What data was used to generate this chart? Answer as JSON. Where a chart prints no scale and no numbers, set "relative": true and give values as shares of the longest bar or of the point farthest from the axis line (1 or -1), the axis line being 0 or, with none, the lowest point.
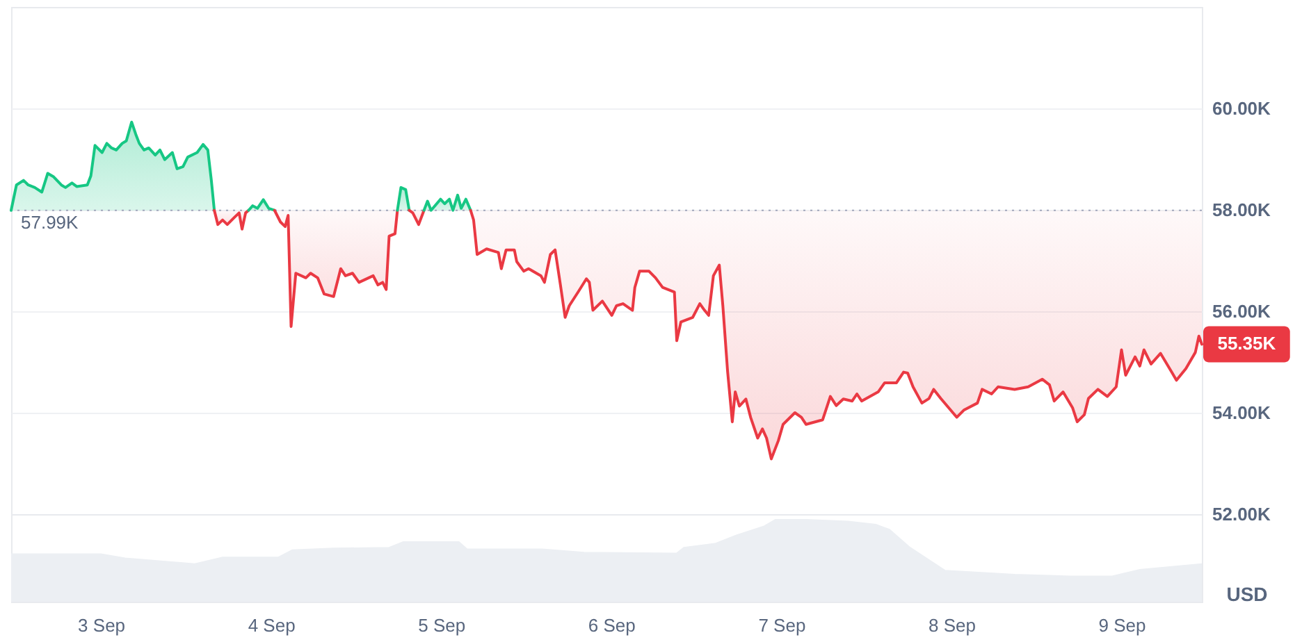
{
  "chart_data": [
    {
      "type": "line",
      "series": [
        {
          "color": "#16c784",
          "x": [
            "--09-02T11:20",
            "--09-02T12:05",
            "--09-02T13:05",
            "--09-02T13:45",
            "--09-02T14:40",
            "--09-02T15:40",
            "--09-02T16:30",
            "--09-02T17:20",
            "--09-02T18:25",
            "--09-02T19:00",
            "--09-02T19:55",
            "--09-02T20:35",
            "--09-02T22:05",
            "--09-02T22:35",
            "--09-02T23:10",
            "--09-03T00:10",
            "--09-03T00:50",
            "--09-03T01:30",
            "--09-03T02:10",
            "--09-03T03:00",
            "--09-03T03:35",
            "--09-03T04:20",
            "--09-03T04:55",
            "--09-03T05:25",
            "--09-03T06:05",
            "--09-03T06:45",
            "--09-03T07:40",
            "--09-03T08:20",
            "--09-03T09:00",
            "--09-03T10:05",
            "--09-03T10:45",
            "--09-03T11:35",
            "--09-03T12:15",
            "--09-03T13:35",
            "--09-03T14:25",
            "--09-03T15:05",
            "--09-03T15:35",
            "--09-03T16:00"
          ],
          "values": [
            57990,
            58490,
            58580,
            58490,
            58440,
            58350,
            58720,
            58650,
            58490,
            58440,
            58530,
            58460,
            58490,
            58670,
            59270,
            59130,
            59310,
            59220,
            59180,
            59310,
            59360,
            59730,
            59490,
            59310,
            59180,
            59220,
            59080,
            59180,
            58990,
            59130,
            58810,
            58850,
            59040,
            59130,
            59290,
            59180,
            58580,
            57990
          ],
          "lower": [
            57990,
            57990,
            57990,
            57990,
            57990,
            57990,
            57990,
            57990,
            57990,
            57990,
            57990,
            57990,
            57990,
            57990,
            57990,
            57990,
            57990,
            57990,
            57990,
            57990,
            57990,
            57990,
            57990,
            57990,
            57990,
            57990,
            57990,
            57990,
            57990,
            57990,
            57990,
            57990,
            57990,
            57990,
            57990,
            57990,
            57990,
            57990
          ],
          "upper": [
            57990,
            58490,
            58580,
            58490,
            58440,
            58350,
            58720,
            58650,
            58490,
            58440,
            58530,
            58460,
            58490,
            58670,
            59270,
            59130,
            59310,
            59220,
            59180,
            59310,
            59360,
            59730,
            59490,
            59310,
            59180,
            59220,
            59080,
            59180,
            58990,
            59130,
            58810,
            58850,
            59040,
            59130,
            59290,
            59180,
            58580,
            57990
          ]
        },
        {
          "color": "#ea3943",
          "x": [
            "--09-03T16:00",
            "--09-03T16:30",
            "--09-03T17:10",
            "--09-03T17:50",
            "--09-03T18:50",
            "--09-03T19:30",
            "--09-03T19:55",
            "--09-03T20:25",
            "--09-03T20:50"
          ],
          "values": [
            57990,
            57710,
            57800,
            57710,
            57850,
            57940,
            57620,
            57940,
            57990
          ],
          "lower": [
            57990,
            57710,
            57800,
            57710,
            57850,
            57940,
            57620,
            57940,
            57990
          ],
          "upper": [
            57990,
            57990,
            57990,
            57990,
            57990,
            57990,
            57990,
            57990,
            57990
          ]
        },
        {
          "color": "#16c784",
          "x": [
            "--09-03T20:50",
            "--09-03T21:25",
            "--09-03T22:05",
            "--09-03T22:55",
            "--09-03T23:40",
            "--09-04T00:30"
          ],
          "values": [
            57990,
            58080,
            58030,
            58200,
            58030,
            57990
          ],
          "lower": [
            57990,
            57990,
            57990,
            57990,
            57990,
            57990
          ],
          "upper": [
            57990,
            58080,
            58030,
            58200,
            58030,
            57990
          ]
        },
        {
          "color": "#ea3943",
          "x": [
            "--09-04T00:30",
            "--09-04T01:20",
            "--09-04T02:00",
            "--09-04T02:25",
            "--09-04T02:50",
            "--09-04T03:30",
            "--09-04T04:55",
            "--09-04T05:35",
            "--09-04T06:35",
            "--09-04T07:30",
            "--09-04T08:50",
            "--09-04T09:50",
            "--09-04T10:30",
            "--09-04T11:30",
            "--09-04T12:25",
            "--09-04T14:25",
            "--09-04T15:05",
            "--09-04T15:45",
            "--09-04T16:15",
            "--09-04T16:40",
            "--09-04T17:30",
            "--09-04T17:50"
          ],
          "values": [
            57990,
            57760,
            57670,
            57890,
            55700,
            56750,
            56660,
            56750,
            56660,
            56340,
            56290,
            56840,
            56700,
            56750,
            56570,
            56700,
            56520,
            56570,
            56430,
            57480,
            57530,
            57990
          ],
          "lower": [
            57990,
            57760,
            57670,
            57890,
            55700,
            56750,
            56660,
            56750,
            56660,
            56340,
            56290,
            56840,
            56700,
            56750,
            56570,
            56700,
            56520,
            56570,
            56430,
            57480,
            57530,
            57990
          ],
          "upper": [
            57990,
            57990,
            57990,
            57990,
            57990,
            57990,
            57990,
            57990,
            57990,
            57990,
            57990,
            57990,
            57990,
            57990,
            57990,
            57990,
            57990,
            57990,
            57990,
            57990,
            57990,
            57990
          ]
        },
        {
          "color": "#16c784",
          "x": [
            "--09-04T17:50",
            "--09-04T18:20",
            "--09-04T19:00",
            "--09-04T19:30"
          ],
          "values": [
            57990,
            58440,
            58400,
            57990
          ],
          "lower": [
            57990,
            57990,
            57990,
            57990
          ],
          "upper": [
            57990,
            58440,
            58400,
            57990
          ]
        },
        {
          "color": "#ea3943",
          "x": [
            "--09-04T19:30",
            "--09-04T20:00",
            "--09-04T20:50",
            "--09-04T21:35"
          ],
          "values": [
            57990,
            57940,
            57710,
            57990
          ],
          "lower": [
            57990,
            57940,
            57710,
            57990
          ],
          "upper": [
            57990,
            57990,
            57990,
            57990
          ]
        },
        {
          "color": "#16c784",
          "x": [
            "--09-04T21:35",
            "--09-04T22:05",
            "--09-04T22:35",
            "--09-04T23:55",
            "--09-05T00:30",
            "--09-05T01:10",
            "--09-05T01:40",
            "--09-05T02:20",
            "--09-05T02:50",
            "--09-05T03:30",
            "--09-05T04:10"
          ],
          "values": [
            57990,
            58170,
            57990,
            58210,
            58120,
            58210,
            57990,
            58290,
            58030,
            58210,
            57990
          ],
          "lower": [
            57990,
            57990,
            57990,
            57990,
            57990,
            57990,
            57990,
            57990,
            57990,
            57990,
            57990
          ],
          "upper": [
            57990,
            58170,
            57990,
            58210,
            58120,
            58210,
            57990,
            58290,
            58030,
            58210,
            57990
          ]
        },
        {
          "color": "#ea3943",
          "x": [
            "--09-05T04:10",
            "--09-05T04:35",
            "--09-05T05:05",
            "--09-05T06:25",
            "--09-05T08:05",
            "--09-05T08:30",
            "--09-05T09:10",
            "--09-05T10:20",
            "--09-05T10:40",
            "--09-05T11:40",
            "--09-05T12:20",
            "--09-05T14:05",
            "--09-05T14:35",
            "--09-05T15:25",
            "--09-05T16:05",
            "--09-05T16:50",
            "--09-05T17:30",
            "--09-05T18:05",
            "--09-05T19:20",
            "--09-05T20:30",
            "--09-05T20:55",
            "--09-05T21:25",
            "--09-05T22:45",
            "--09-06T00:05",
            "--09-06T00:45",
            "--09-06T01:40",
            "--09-06T03:00",
            "--09-06T03:20",
            "--09-06T04:00",
            "--09-06T05:20",
            "--09-06T06:15",
            "--09-06T07:15",
            "--09-06T08:55",
            "--09-06T09:15",
            "--09-06T09:50",
            "--09-06T11:30",
            "--09-06T12:30",
            "--09-06T13:10",
            "--09-06T13:45",
            "--09-06T14:25",
            "--09-06T15:15",
            "--09-06T15:45",
            "--09-06T16:25",
            "--09-06T17:05",
            "--09-06T17:30",
            "--09-06T18:05",
            "--09-06T19:00",
            "--09-06T19:40",
            "--09-06T20:40",
            "--09-06T21:20",
            "--09-06T21:55",
            "--09-06T22:35",
            "--09-06T23:35",
            "--09-07T00:15",
            "--09-07T01:55",
            "--09-07T02:50",
            "--09-07T03:30",
            "--09-07T05:50",
            "--09-07T06:55",
            "--09-07T07:45",
            "--09-07T08:45",
            "--09-07T10:00",
            "--09-07T10:40",
            "--09-07T11:20",
            "--09-07T13:40",
            "--09-07T14:35",
            "--09-07T16:15",
            "--09-07T17:15",
            "--09-07T17:50",
            "--09-07T18:35",
            "--09-07T19:50",
            "--09-07T20:50",
            "--09-07T21:30",
            "--09-07T22:30",
            "--09-08T00:45",
            "--09-08T01:45",
            "--09-08T03:40",
            "--09-08T04:20",
            "--09-08T05:40",
            "--09-08T06:35",
            "--09-08T08:55",
            "--09-08T10:50",
            "--09-08T12:50",
            "--09-08T13:50",
            "--09-08T14:30",
            "--09-08T15:45",
            "--09-08T17:05",
            "--09-08T17:45",
            "--09-08T18:45",
            "--09-08T19:20",
            "--09-08T20:40",
            "--09-08T22:00",
            "--09-08T23:15",
            "--09-09T00:00",
            "--09-09T00:35",
            "--09-09T01:55",
            "--09-09T02:35",
            "--09-09T03:10",
            "--09-09T04:10",
            "--09-09T05:30",
            "--09-09T07:10",
            "--09-09T07:45",
            "--09-09T09:05",
            "--09-09T10:25",
            "--09-09T10:55",
            "--09-09T11:20"
          ],
          "values": [
            57990,
            57800,
            57120,
            57230,
            57160,
            56840,
            57210,
            57210,
            56980,
            56790,
            56840,
            56700,
            56570,
            57120,
            57210,
            56520,
            55880,
            56110,
            56380,
            56640,
            56570,
            56020,
            56200,
            55920,
            56110,
            56150,
            56020,
            56470,
            56790,
            56790,
            56660,
            56470,
            56380,
            55420,
            55790,
            55880,
            56150,
            56020,
            55920,
            56700,
            56910,
            56110,
            54820,
            53820,
            54410,
            54130,
            54270,
            53910,
            53500,
            53680,
            53500,
            53090,
            53450,
            53770,
            54000,
            53910,
            53770,
            53860,
            54320,
            54140,
            54270,
            54230,
            54370,
            54230,
            54410,
            54590,
            54590,
            54800,
            54780,
            54510,
            54190,
            54280,
            54460,
            54280,
            53910,
            54050,
            54190,
            54460,
            54370,
            54510,
            54460,
            54510,
            54660,
            54550,
            54230,
            54410,
            54100,
            53820,
            53960,
            54280,
            54460,
            54320,
            54510,
            55240,
            54740,
            55100,
            54920,
            55240,
            54960,
            55170,
            54780,
            54640,
            54870,
            55190,
            55510,
            55350
          ],
          "lower": [
            57990,
            57800,
            57120,
            57230,
            57160,
            56840,
            57210,
            57210,
            56980,
            56790,
            56840,
            56700,
            56570,
            57120,
            57210,
            56520,
            55880,
            56110,
            56380,
            56640,
            56570,
            56020,
            56200,
            55920,
            56110,
            56150,
            56020,
            56470,
            56790,
            56790,
            56660,
            56470,
            56380,
            55420,
            55790,
            55880,
            56150,
            56020,
            55920,
            56700,
            56910,
            56110,
            54820,
            53820,
            54410,
            54130,
            54270,
            53910,
            53500,
            53680,
            53500,
            53090,
            53450,
            53770,
            54000,
            53910,
            53770,
            53860,
            54320,
            54140,
            54270,
            54230,
            54370,
            54230,
            54410,
            54590,
            54590,
            54800,
            54780,
            54510,
            54190,
            54280,
            54460,
            54280,
            53910,
            54050,
            54190,
            54460,
            54370,
            54510,
            54460,
            54510,
            54660,
            54550,
            54230,
            54410,
            54100,
            53820,
            53960,
            54280,
            54460,
            54320,
            54510,
            55240,
            54740,
            55100,
            54920,
            55240,
            54960,
            55170,
            54780,
            54640,
            54870,
            55190,
            55510,
            55350
          ],
          "upper": [
            57990,
            57990,
            57990,
            57990,
            57990,
            57990,
            57990,
            57990,
            57990,
            57990,
            57990,
            57990,
            57990,
            57990,
            57990,
            57990,
            57990,
            57990,
            57990,
            57990,
            57990,
            57990,
            57990,
            57990,
            57990,
            57990,
            57990,
            57990,
            57990,
            57990,
            57990,
            57990,
            57990,
            57990,
            57990,
            57990,
            57990,
            57990,
            57990,
            57990,
            57990,
            57990,
            57990,
            57990,
            57990,
            57990,
            57990,
            57990,
            57990,
            57990,
            57990,
            57990,
            57990,
            57990,
            57990,
            57990,
            57990,
            57990,
            57990,
            57990,
            57990,
            57990,
            57990,
            57990,
            57990,
            57990,
            57990,
            57990,
            57990,
            57990,
            57990,
            57990,
            57990,
            57990,
            57990,
            57990,
            57990,
            57990,
            57990,
            57990,
            57990,
            57990,
            57990,
            57990,
            57990,
            57990,
            57990,
            57990,
            57990,
            57990,
            57990,
            57990,
            57990,
            57990,
            57990,
            57990,
            57990,
            57990,
            57990,
            57990,
            57990,
            57990,
            57990,
            57990,
            57990,
            57990
          ]
        }
      ],
      "xlim": [
        "--09-02T11:20",
        "--09-09T11:20"
      ],
      "ylim": [
        52000,
        62000
      ],
      "yticks": [
        {
          "value": 52000,
          "label": "52.00K"
        },
        {
          "value": 54000,
          "label": "54.00K"
        },
        {
          "value": 56000,
          "label": "56.00K"
        },
        {
          "value": 58000,
          "label": "58.00K"
        },
        {
          "value": 60000,
          "label": "60.00K"
        }
      ],
      "ylabel": "USD",
      "grid": "y",
      "tick_labels": "y",
      "ref_lines": [
        {
          "axis": "y",
          "value": 57990,
          "label": "57.99K",
          "color": "#a1a7bb",
          "line_style": "dotted"
        }
      ],
      "annotations": [
        {
          "text": "55.35K",
          "x": "--09-09T11:20",
          "y": 55350
        }
      ]
    },
    {
      "type": "area",
      "relative": true,
      "color": "#eceff3",
      "x": [
        "--09-02T11:20",
        "--09-03T00:00",
        "--09-03T03:25",
        "--09-03T13:15",
        "--09-03T17:10",
        "--09-04T01:00",
        "--09-04T03:00",
        "--09-04T08:50",
        "--09-04T16:40",
        "--09-04T18:40",
        "--09-05T02:30",
        "--09-05T03:40",
        "--09-05T14:15",
        "--09-05T20:10",
        "--09-06T09:15",
        "--09-06T10:15",
        "--09-06T14:45",
        "--09-06T17:40",
        "--09-06T21:35",
        "--09-06T23:10",
        "--09-07T03:30",
        "--09-07T09:25",
        "--09-07T13:20",
        "--09-07T15:15",
        "--09-07T18:10",
        "--09-07T23:05",
        "--09-08T03:00",
        "--09-08T08:55",
        "--09-08T16:45",
        "--09-08T22:40",
        "--09-09T02:35",
        "--09-09T11:20"
      ],
      "values": [
        0.58,
        0.58,
        0.53,
        0.46,
        0.54,
        0.54,
        0.63,
        0.65,
        0.66,
        0.73,
        0.73,
        0.64,
        0.64,
        0.6,
        0.59,
        0.66,
        0.71,
        0.81,
        0.92,
        1,
        1,
        0.98,
        0.94,
        0.88,
        0.66,
        0.38,
        0.36,
        0.33,
        0.31,
        0.31,
        0.39,
        0.46
      ],
      "xlim": [
        "--09-02T11:20",
        "--09-09T11:20"
      ],
      "xticks": [
        {
          "value": "--09-03",
          "label": "3 Sep"
        },
        {
          "value": "--09-04",
          "label": "4 Sep"
        },
        {
          "value": "--09-05",
          "label": "5 Sep"
        },
        {
          "value": "--09-06",
          "label": "6 Sep"
        },
        {
          "value": "--09-07",
          "label": "7 Sep"
        },
        {
          "value": "--09-08",
          "label": "8 Sep"
        },
        {
          "value": "--09-09",
          "label": "9 Sep"
        }
      ]
    }
  ]
}
